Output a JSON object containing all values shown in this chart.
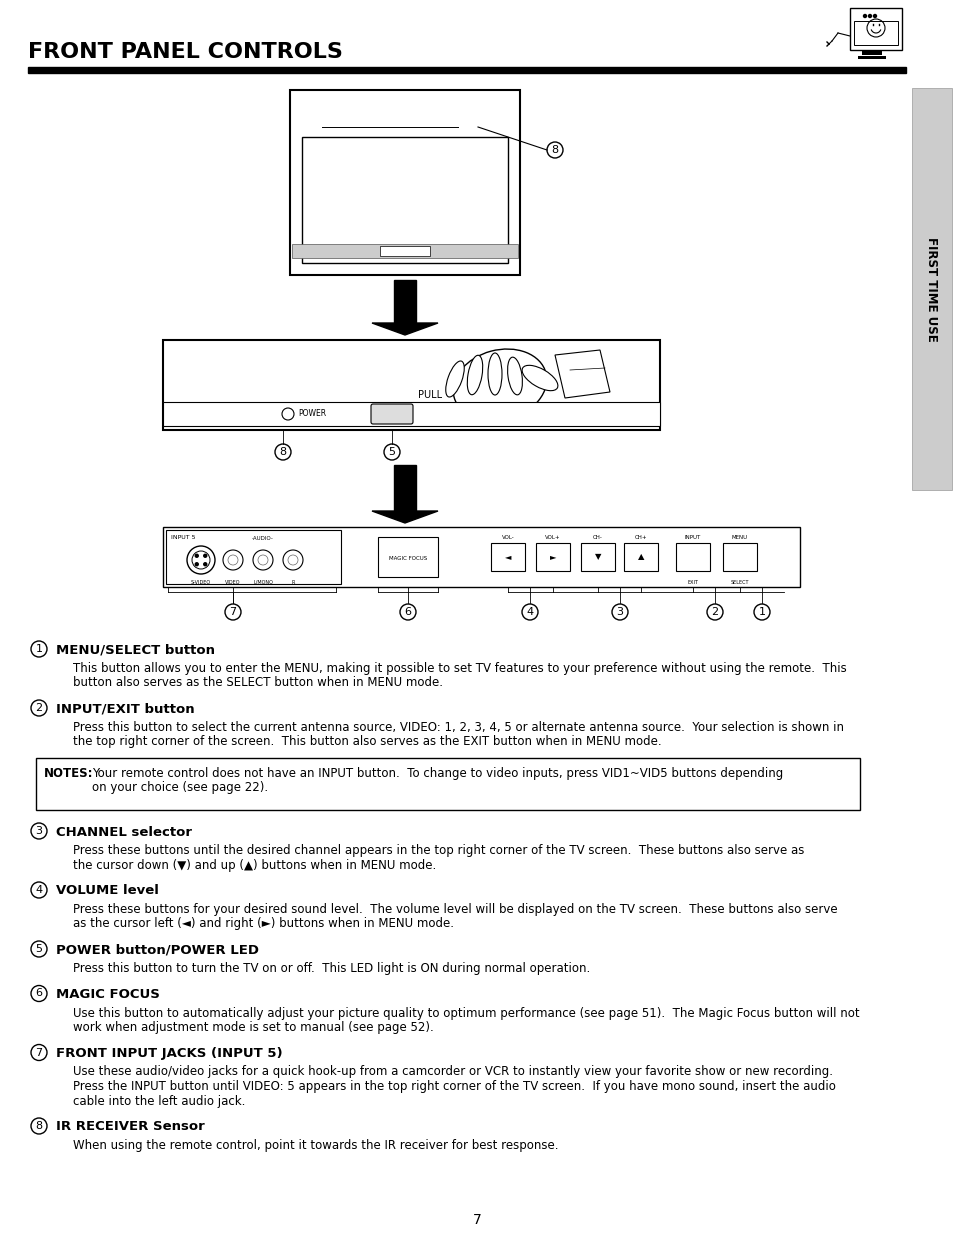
{
  "title": "FRONT PANEL CONTROLS",
  "sidebar_text": "FIRST TIME USE",
  "page_number": "7",
  "background_color": "#ffffff",
  "text_color": "#000000",
  "sections": [
    {
      "number": "1",
      "heading": "MENU/SELECT button",
      "body": "This button allows you to enter the MENU, making it possible to set TV features to your preference without using the remote.  This\nbutton also serves as the SELECT button when in MENU mode."
    },
    {
      "number": "2",
      "heading": "INPUT/EXIT button",
      "body": "Press this button to select the current antenna source, VIDEO: 1, 2, 3, 4, 5 or alternate antenna source.  Your selection is shown in\nthe top right corner of the screen.  This button also serves as the EXIT button when in MENU mode."
    },
    {
      "note_label": "NOTES:",
      "note_body": "Your remote control does not have an INPUT button.  To change to video inputs, press VID1~VID5 buttons depending\n            on your choice (see page 22)."
    },
    {
      "number": "3",
      "heading": "CHANNEL selector",
      "body": "Press these buttons until the desired channel appears in the top right corner of the TV screen.  These buttons also serve as\nthe cursor down (▼) and up (▲) buttons when in MENU mode."
    },
    {
      "number": "4",
      "heading": "VOLUME level",
      "body": "Press these buttons for your desired sound level.  The volume level will be displayed on the TV screen.  These buttons also serve\nas the cursor left (◄) and right (►) buttons when in MENU mode."
    },
    {
      "number": "5",
      "heading": "POWER button/POWER LED",
      "body": "Press this button to turn the TV on or off.  This LED light is ON during normal operation."
    },
    {
      "number": "6",
      "heading": "MAGIC FOCUS",
      "body": "Use this button to automatically adjust your picture quality to optimum performance (see page 51).  The Magic Focus button will not\nwork when adjustment mode is set to manual (see page 52)."
    },
    {
      "number": "7",
      "heading": "FRONT INPUT JACKS (INPUT 5)",
      "body": "Use these audio/video jacks for a quick hook-up from a camcorder or VCR to instantly view your favorite show or new recording.\nPress the INPUT button until VIDEO: 5 appears in the top right corner of the TV screen.  If you have mono sound, insert the audio\ncable into the left audio jack."
    },
    {
      "number": "8",
      "heading": "IR RECEIVER Sensor",
      "body": "When using the remote control, point it towards the IR receiver for best response."
    }
  ]
}
